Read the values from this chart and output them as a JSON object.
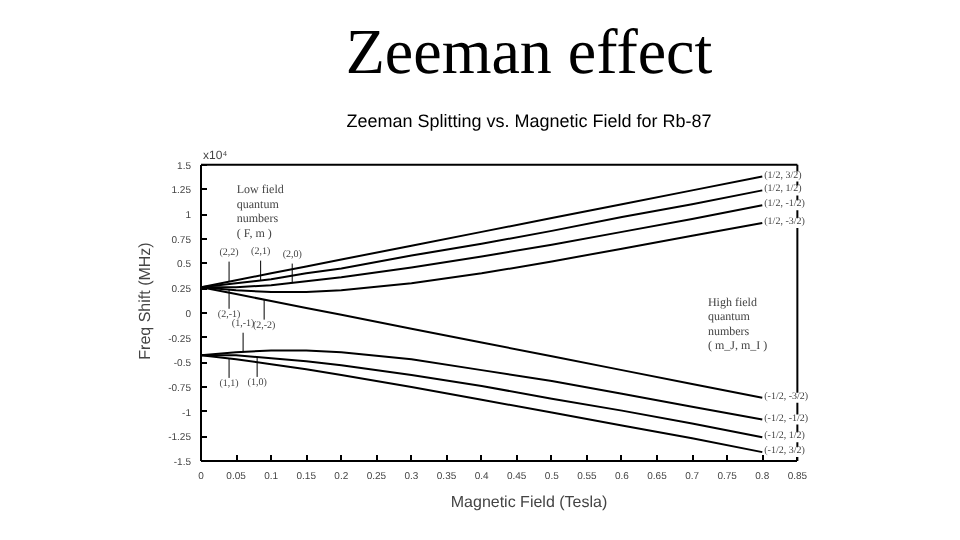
{
  "chart_data": {
    "type": "line",
    "title": "Zeeman effect",
    "subtitle": "Zeeman Splitting vs. Magnetic Field for Rb-87",
    "xlabel": "Magnetic Field (Tesla)",
    "ylabel": "Freq Shift (MHz)",
    "x": [
      0,
      0.05,
      0.1,
      0.15,
      0.2,
      0.3,
      0.4,
      0.5,
      0.6,
      0.7,
      0.8
    ],
    "series": [
      {
        "color": "#000000",
        "values": [
          0.26,
          0.33,
          0.4,
          0.47,
          0.54,
          0.68,
          0.82,
          0.96,
          1.1,
          1.24,
          1.38
        ]
      },
      {
        "color": "#000000",
        "values": [
          0.26,
          0.3,
          0.34,
          0.4,
          0.45,
          0.58,
          0.7,
          0.83,
          0.97,
          1.1,
          1.24
        ]
      },
      {
        "color": "#000000",
        "values": [
          0.26,
          0.26,
          0.28,
          0.32,
          0.36,
          0.46,
          0.57,
          0.69,
          0.82,
          0.95,
          1.09
        ]
      },
      {
        "color": "#000000",
        "values": [
          0.26,
          0.23,
          0.21,
          0.21,
          0.23,
          0.3,
          0.4,
          0.52,
          0.65,
          0.78,
          0.91
        ]
      },
      {
        "color": "#000000",
        "values": [
          0.26,
          0.19,
          0.12,
          0.05,
          -0.02,
          -0.16,
          -0.3,
          -0.44,
          -0.58,
          -0.72,
          -0.86
        ]
      },
      {
        "color": "#000000",
        "values": [
          -0.43,
          -0.4,
          -0.38,
          -0.38,
          -0.4,
          -0.47,
          -0.58,
          -0.69,
          -0.82,
          -0.95,
          -1.08
        ]
      },
      {
        "color": "#000000",
        "values": [
          -0.43,
          -0.43,
          -0.46,
          -0.49,
          -0.53,
          -0.63,
          -0.74,
          -0.87,
          -0.99,
          -1.12,
          -1.26
        ]
      },
      {
        "color": "#000000",
        "values": [
          -0.43,
          -0.47,
          -0.52,
          -0.57,
          -0.63,
          -0.75,
          -0.88,
          -1.01,
          -1.14,
          -1.27,
          -1.41
        ]
      }
    ],
    "xlim": [
      0,
      0.85
    ],
    "xticks": [
      0,
      0.05,
      0.1,
      0.15,
      0.2,
      0.25,
      0.3,
      0.35,
      0.4,
      0.45,
      0.5,
      0.55,
      0.6,
      0.65,
      0.7,
      0.75,
      0.8,
      0.85
    ],
    "ylim": [
      -1.5,
      1.5
    ],
    "yticks": [
      -1.5,
      -1.25,
      -1,
      -0.75,
      -0.5,
      -0.25,
      0,
      0.25,
      0.5,
      0.75,
      1,
      1.25,
      1.5
    ],
    "grid": false,
    "marker": "none",
    "line_style": "solid",
    "annotations": [
      "x10⁴",
      "Low field\nquantum\nnumbers\n( F, m )",
      "High field\nquantum\nnumbers\n( m_J, m_I )",
      {
        "text": "(2,2)",
        "x": 0.04,
        "y": 0.32
      },
      {
        "text": "(2,1)",
        "x": 0.085,
        "y": 0.33
      },
      {
        "text": "(2,0)",
        "x": 0.13,
        "y": 0.3
      },
      {
        "text": "(2,-1)",
        "x": 0.04,
        "y": 0.24
      },
      {
        "text": "(2,-2)",
        "x": 0.09,
        "y": 0.13
      },
      {
        "text": "(1,-1)",
        "x": 0.06,
        "y": -0.4
      },
      {
        "text": "(1,1)",
        "x": 0.04,
        "y": -0.46
      },
      {
        "text": "(1,0)",
        "x": 0.08,
        "y": -0.45
      },
      {
        "text": "(1/2, 3/2)",
        "x": 0.8,
        "y": 1.38
      },
      {
        "text": "(1/2, 1/2)",
        "x": 0.8,
        "y": 1.24
      },
      {
        "text": "(1/2, -1/2)",
        "x": 0.8,
        "y": 1.09
      },
      {
        "text": "(1/2, -3/2)",
        "x": 0.8,
        "y": 0.91
      },
      {
        "text": "(-1/2, -3/2)",
        "x": 0.8,
        "y": -0.86
      },
      {
        "text": "(-1/2, -1/2)",
        "x": 0.8,
        "y": -1.08
      },
      {
        "text": "(-1/2, 1/2)",
        "x": 0.8,
        "y": -1.26
      },
      {
        "text": "(-1/2, 3/2)",
        "x": 0.8,
        "y": -1.41
      }
    ]
  }
}
